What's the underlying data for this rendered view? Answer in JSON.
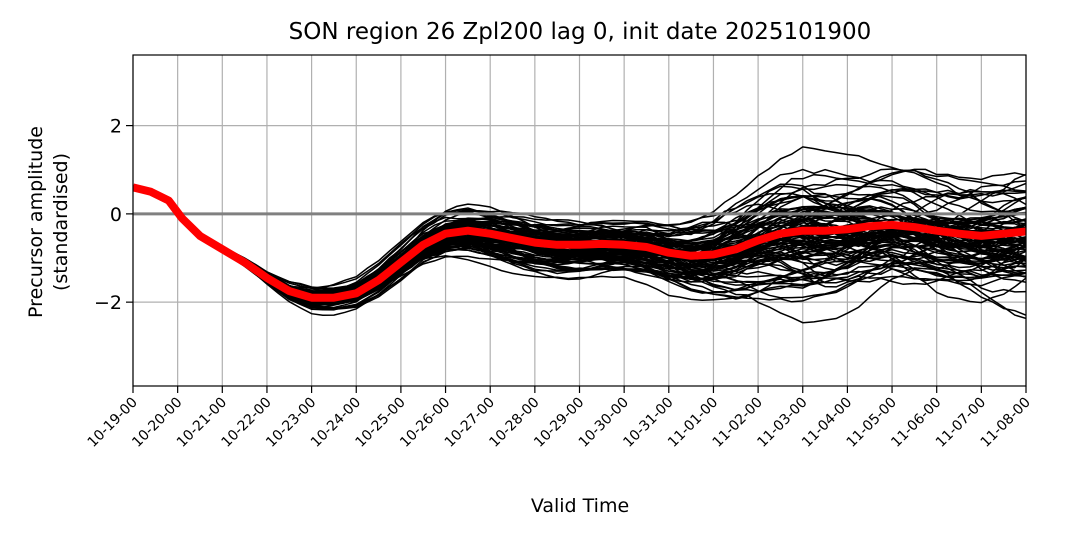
{
  "chart_data": {
    "type": "line",
    "title": "SON region 26 Zpl200 lag 0, init date 2025101900",
    "xlabel": "Valid Time",
    "ylabel_lines": [
      "Precursor amplitude",
      "(standardised)"
    ],
    "x_tick_labels": [
      "10-19-00",
      "10-20-00",
      "10-21-00",
      "10-22-00",
      "10-23-00",
      "10-24-00",
      "10-25-00",
      "10-26-00",
      "10-27-00",
      "10-28-00",
      "10-29-00",
      "10-30-00",
      "10-31-00",
      "11-01-00",
      "11-02-00",
      "11-03-00",
      "11-04-00",
      "11-05-00",
      "11-06-00",
      "11-07-00",
      "11-08-00"
    ],
    "y_ticks": [
      -2,
      0,
      2
    ],
    "y_tick_labels": [
      "−2",
      "0",
      "2"
    ],
    "ylim": [
      -3.9,
      3.6
    ],
    "x_days": [
      0,
      20
    ],
    "grid": true,
    "zero_line_color": "#808080",
    "ensemble_color": "#000000",
    "mean_color": "#ff0000",
    "ensemble_members": 100,
    "ensemble_spread_by_day": [
      [
        0,
        0.0
      ],
      [
        1,
        0.02
      ],
      [
        2,
        0.05
      ],
      [
        3,
        0.12
      ],
      [
        4,
        0.25
      ],
      [
        5,
        0.3
      ],
      [
        6,
        0.35
      ],
      [
        7,
        0.45
      ],
      [
        8,
        0.5
      ],
      [
        9,
        0.5
      ],
      [
        10,
        0.52
      ],
      [
        11,
        0.55
      ],
      [
        12,
        0.65
      ],
      [
        13,
        0.8
      ],
      [
        14,
        1.0
      ],
      [
        15,
        1.15
      ],
      [
        16,
        1.1
      ],
      [
        17,
        1.05
      ],
      [
        18,
        1.05
      ],
      [
        19,
        1.05
      ],
      [
        20,
        1.05
      ]
    ],
    "ensemble_mean_series": {
      "x_day": [
        0,
        0.4,
        0.8,
        1.1,
        1.5,
        2.0,
        2.5,
        3.0,
        3.5,
        4.0,
        4.5,
        5.0,
        5.5,
        6.0,
        6.5,
        7.0,
        7.5,
        8.0,
        8.5,
        9.0,
        9.5,
        10.0,
        10.5,
        11.0,
        11.5,
        12.0,
        12.5,
        13.0,
        13.5,
        14.0,
        14.5,
        15.0,
        15.5,
        16.0,
        16.5,
        17.0,
        17.5,
        18.0,
        18.5,
        19.0,
        19.5,
        20.0
      ],
      "y": [
        0.6,
        0.5,
        0.3,
        -0.1,
        -0.5,
        -0.8,
        -1.1,
        -1.45,
        -1.75,
        -1.9,
        -1.9,
        -1.8,
        -1.5,
        -1.1,
        -0.7,
        -0.45,
        -0.38,
        -0.45,
        -0.55,
        -0.65,
        -0.7,
        -0.7,
        -0.68,
        -0.7,
        -0.75,
        -0.88,
        -0.95,
        -0.92,
        -0.8,
        -0.6,
        -0.45,
        -0.38,
        -0.38,
        -0.35,
        -0.28,
        -0.25,
        -0.3,
        -0.38,
        -0.45,
        -0.5,
        -0.45,
        -0.4
      ]
    }
  }
}
